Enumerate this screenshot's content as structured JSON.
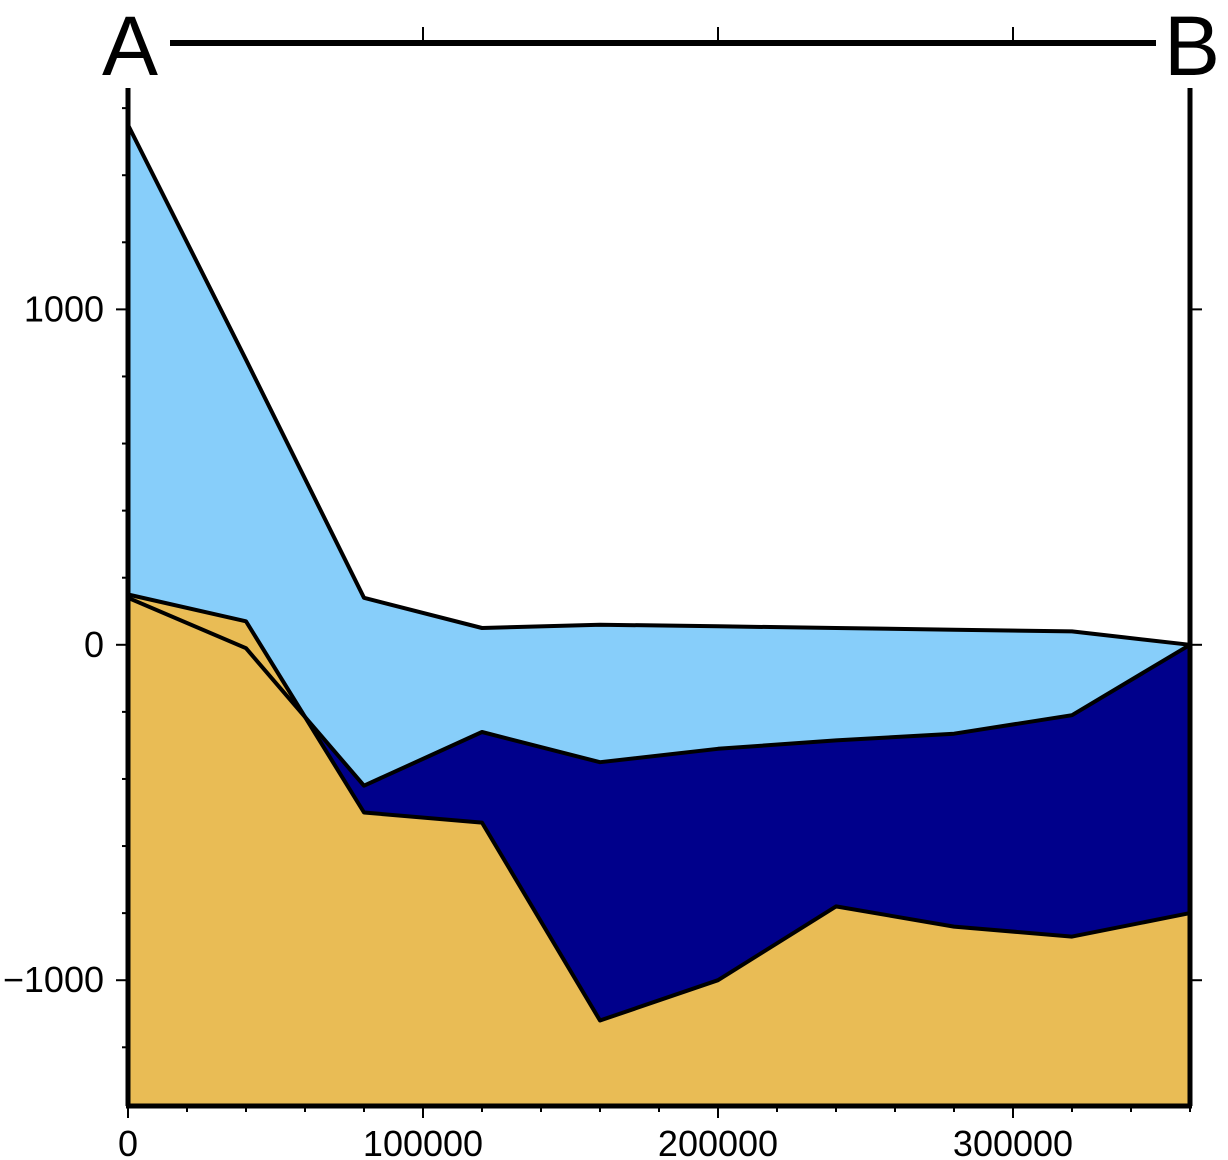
{
  "chart_data": {
    "type": "area",
    "profile_start_label": "A",
    "profile_end_label": "B",
    "x": [
      0,
      40000,
      80000,
      120000,
      160000,
      200000,
      240000,
      280000,
      320000,
      360000
    ],
    "series": [
      {
        "role": "surface",
        "color": "#87cefa",
        "values": [
          1550,
          850,
          140,
          50,
          60,
          55,
          50,
          45,
          40,
          0
        ]
      },
      {
        "role": "middle",
        "color": "#00008b",
        "values": [
          140,
          -10,
          -420,
          -260,
          -350,
          -310,
          -285,
          -265,
          -210,
          0
        ]
      },
      {
        "role": "basement",
        "color": "#e9bc55",
        "values": [
          150,
          70,
          -500,
          -530,
          -1120,
          -1000,
          -780,
          -840,
          -870,
          -800
        ]
      }
    ],
    "xlim": [
      0,
      360000
    ],
    "ylim": [
      -1375,
      1660
    ],
    "x_ticks": [
      0,
      100000,
      200000,
      300000
    ],
    "x_tick_labels": [
      "0",
      "100000",
      "200000",
      "300000"
    ],
    "y_ticks": [
      -1000,
      0,
      1000
    ],
    "y_tick_labels": [
      "−1000",
      "0",
      "1000"
    ],
    "x_minor_step": 20000,
    "y_minor_step": 200,
    "grid": false,
    "legend": "none",
    "xlabel": "",
    "ylabel": "",
    "title": ""
  }
}
